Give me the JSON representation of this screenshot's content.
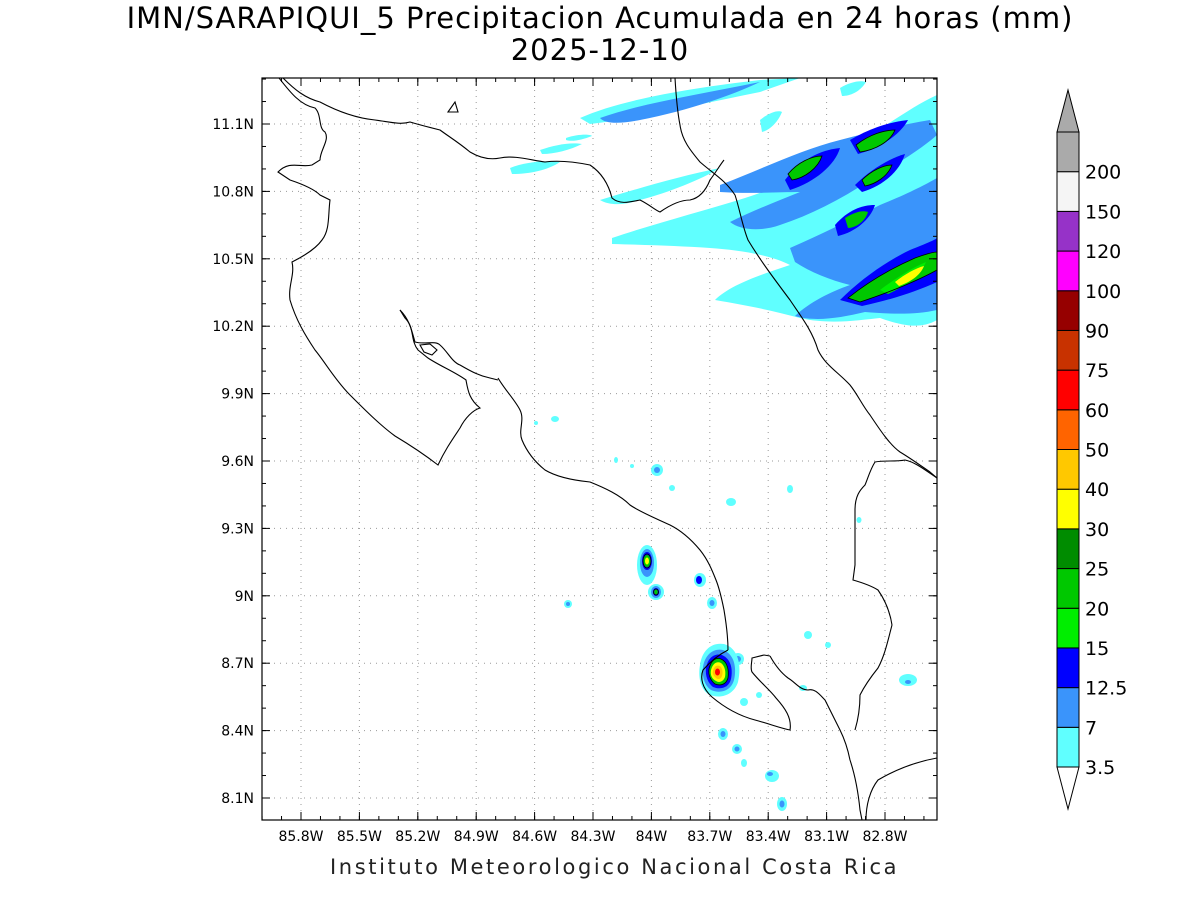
{
  "header": {
    "title_line_1": "IMN/SARAPIQUI_5 Precipitacion Acumulada en 24 horas (mm)",
    "title_line_2": "2025-12-10"
  },
  "map": {
    "lat_labels": [
      "11.1N",
      "10.8N",
      "10.5N",
      "10.2N",
      "9.9N",
      "9.6N",
      "9.3N",
      "9N",
      "8.7N",
      "8.4N",
      "8.1N"
    ],
    "lon_labels": [
      "85.8W",
      "85.5W",
      "85.2W",
      "84.9W",
      "84.6W",
      "84.3W",
      "84W",
      "83.7W",
      "83.4W",
      "83.1W",
      "82.8W"
    ]
  },
  "colorbar": {
    "labels": [
      "3.5",
      "7",
      "12.5",
      "15",
      "20",
      "25",
      "30",
      "40",
      "50",
      "60",
      "75",
      "90",
      "100",
      "120",
      "150",
      "200"
    ],
    "colors": [
      "#60ffff",
      "#3a94fb",
      "#0000ff",
      "#00ee00",
      "#00c800",
      "#008c00",
      "#ffff00",
      "#ffc800",
      "#ff6400",
      "#ff0000",
      "#c83200",
      "#960000",
      "#ff00ff",
      "#9632c8",
      "#f5f5f5",
      "#aaaaaa"
    ]
  },
  "precip_colors": {
    "light": "#60ffff",
    "moderate": "#3a94fb",
    "heavy": "#0000ff",
    "green1": "#00ee00",
    "green2": "#00c800",
    "yellow": "#ffff00",
    "orange": "#ffc800",
    "red": "#ff0000"
  },
  "footer": {
    "credit": "Instituto Meteorologico Nacional Costa Rica"
  }
}
